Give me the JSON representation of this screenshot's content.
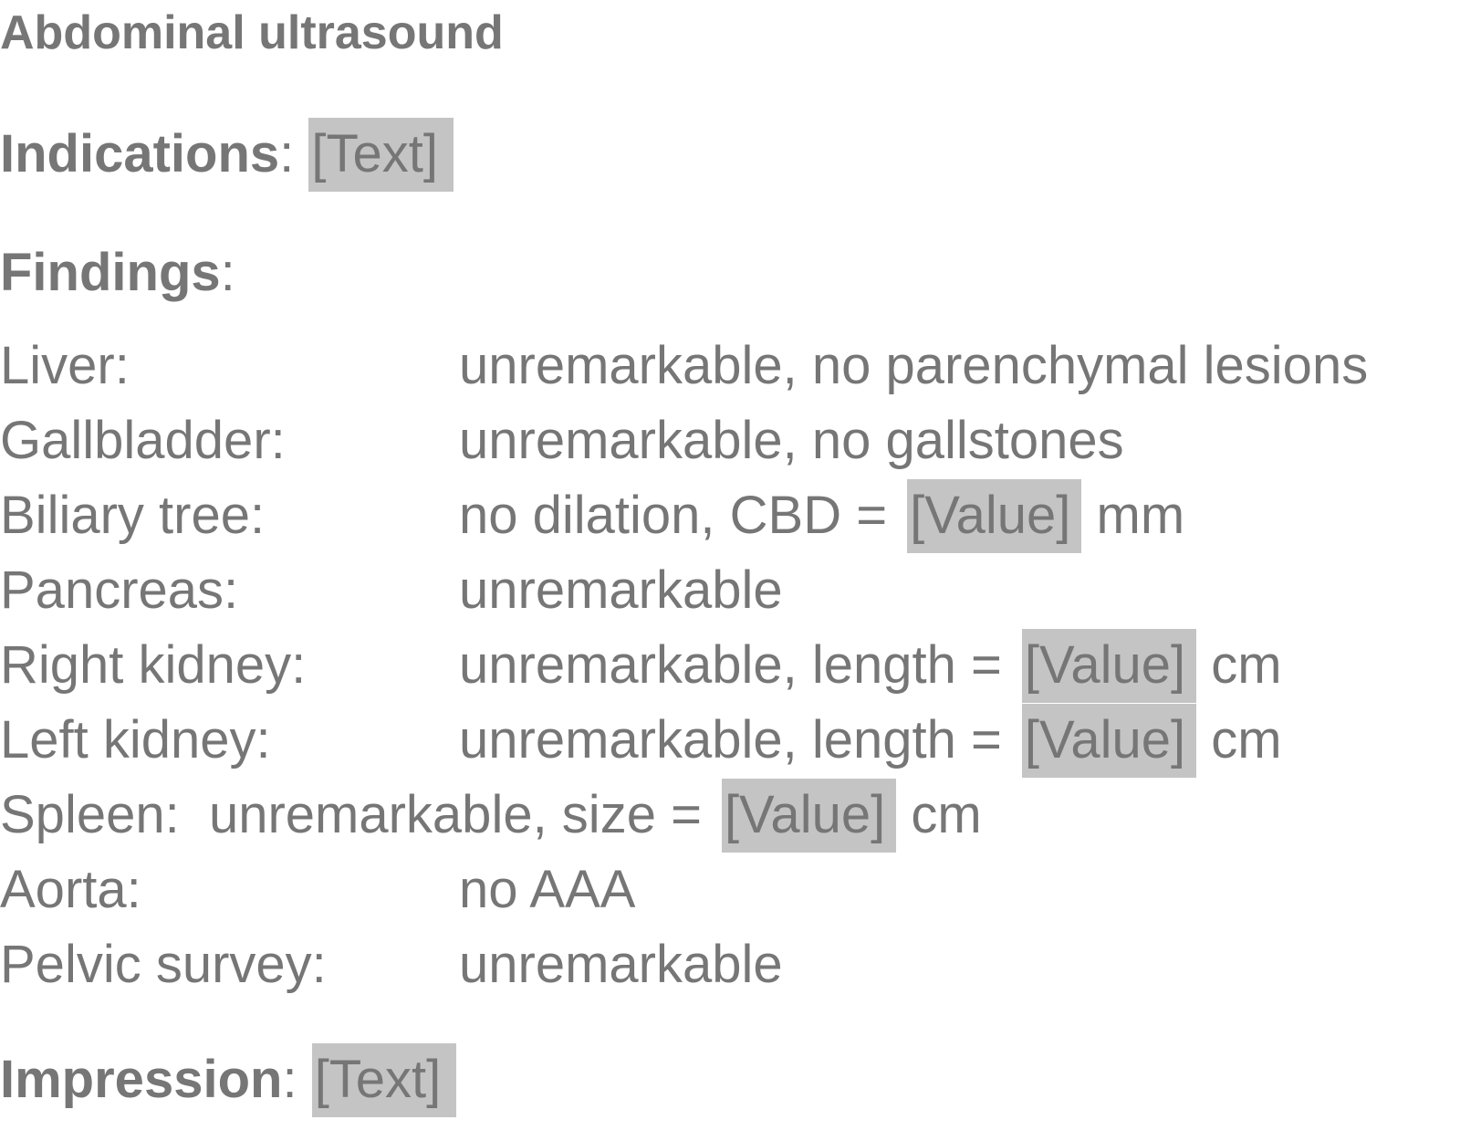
{
  "title": "Abdominal ultrasound",
  "indications": {
    "label": "Indications",
    "colon": ":",
    "placeholder": "[Text]"
  },
  "findings": {
    "label": "Findings",
    "colon": ":"
  },
  "rows": [
    {
      "label": "Liver:",
      "value": "unremarkable, no parenchymal lesions"
    },
    {
      "label": "Gallbladder:",
      "value": "unremarkable, no gallstones"
    },
    {
      "label": "Biliary tree:",
      "prefix": "no dilation, CBD =",
      "placeholder": "[Value]",
      "unit": "mm"
    },
    {
      "label": "Pancreas:",
      "value": "unremarkable"
    },
    {
      "label": "Right kidney:",
      "prefix": "unremarkable, length =",
      "placeholder": "[Value]",
      "unit": "cm"
    },
    {
      "label": "Left kidney:",
      "prefix": "unremarkable, length =",
      "placeholder": "[Value]",
      "unit": "cm"
    },
    {
      "label": "Spleen:",
      "prefix": "unremarkable, size =",
      "placeholder": "[Value]",
      "unit": "cm"
    },
    {
      "label": "Aorta:",
      "value": "no AAA"
    },
    {
      "label": "Pelvic survey:",
      "value": "unremarkable"
    }
  ],
  "impression": {
    "label": "Impression",
    "colon": ":",
    "placeholder": "[Text]"
  }
}
